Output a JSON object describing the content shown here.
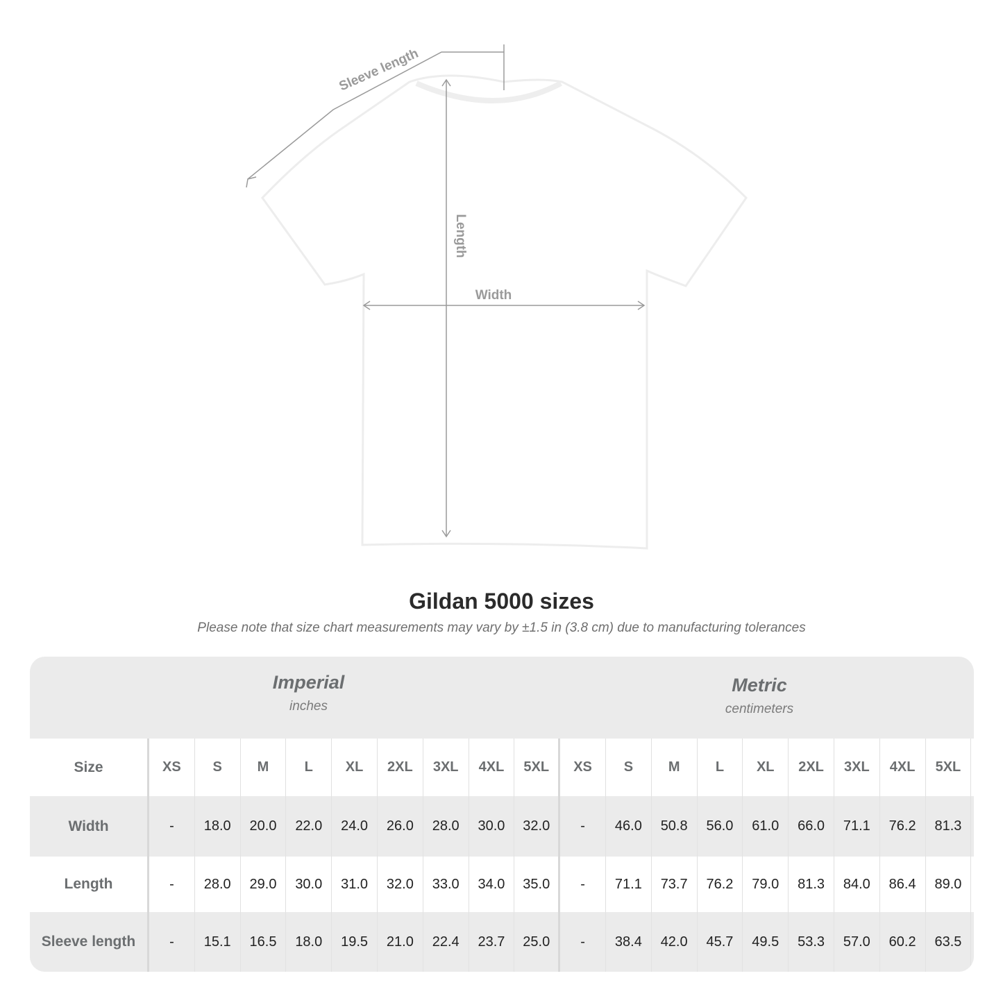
{
  "diagram": {
    "labels": {
      "sleeve": "Sleeve length",
      "length": "Length",
      "width": "Width"
    },
    "line_color": "#9a9a9a"
  },
  "title": "Gildan 5000 sizes",
  "note": "Please note that size chart measurements may vary by ±1.5 in (3.8 cm) due to manufacturing tolerances",
  "table": {
    "imperial": {
      "name": "Imperial",
      "unit": "inches"
    },
    "metric": {
      "name": "Metric",
      "unit": "centimeters"
    },
    "size_label": "Size",
    "sizes": [
      "XS",
      "S",
      "M",
      "L",
      "XL",
      "2XL",
      "3XL",
      "4XL",
      "5XL"
    ],
    "rows": [
      {
        "label": "Width",
        "imperial": [
          "-",
          "18.0",
          "20.0",
          "22.0",
          "24.0",
          "26.0",
          "28.0",
          "30.0",
          "32.0"
        ],
        "metric": [
          "-",
          "46.0",
          "50.8",
          "56.0",
          "61.0",
          "66.0",
          "71.1",
          "76.2",
          "81.3"
        ]
      },
      {
        "label": "Length",
        "imperial": [
          "-",
          "28.0",
          "29.0",
          "30.0",
          "31.0",
          "32.0",
          "33.0",
          "34.0",
          "35.0"
        ],
        "metric": [
          "-",
          "71.1",
          "73.7",
          "76.2",
          "79.0",
          "81.3",
          "84.0",
          "86.4",
          "89.0"
        ]
      },
      {
        "label": "Sleeve length",
        "imperial": [
          "-",
          "15.1",
          "16.5",
          "18.0",
          "19.5",
          "21.0",
          "22.4",
          "23.7",
          "25.0"
        ],
        "metric": [
          "-",
          "38.4",
          "42.0",
          "45.7",
          "49.5",
          "53.3",
          "57.0",
          "60.2",
          "63.5"
        ]
      }
    ],
    "colors": {
      "header_bg": "#ebebeb",
      "label_text": "#6b6e70"
    }
  }
}
